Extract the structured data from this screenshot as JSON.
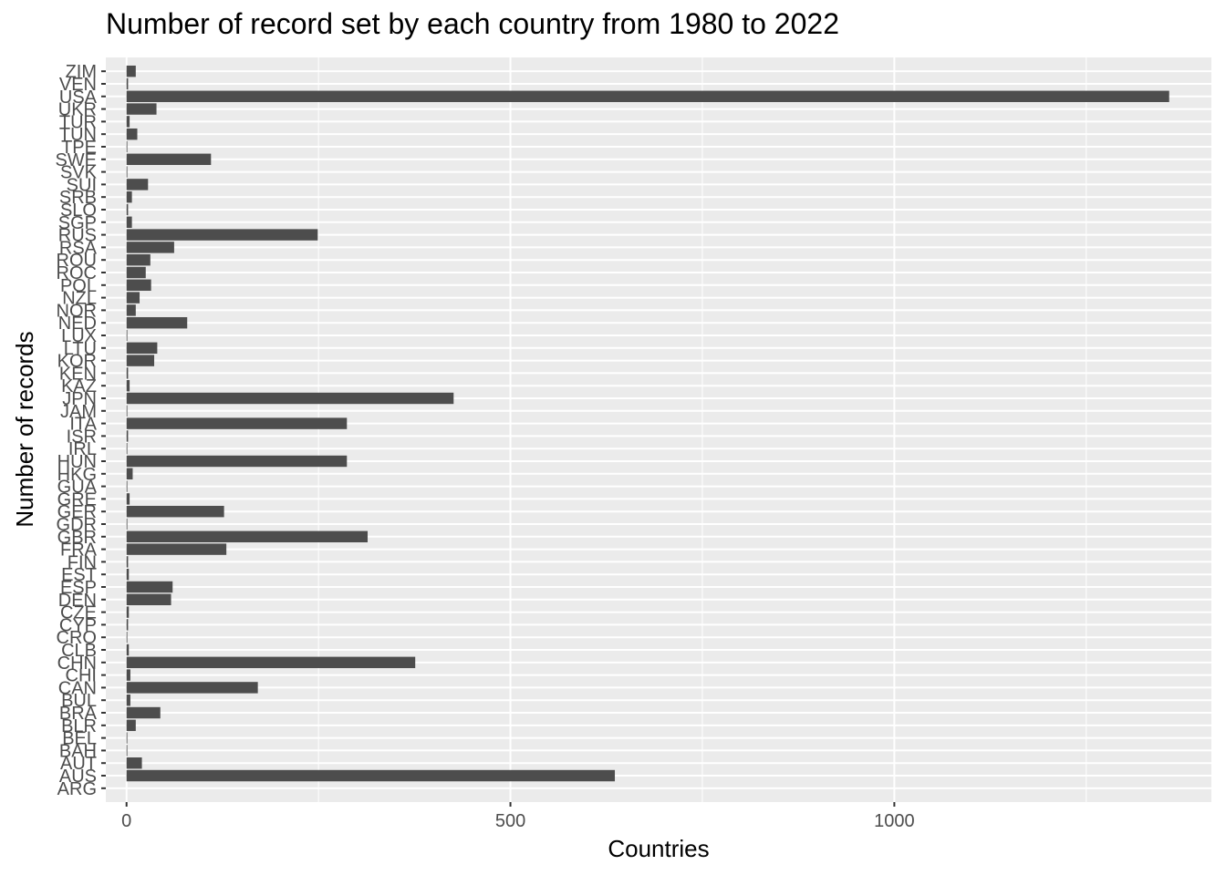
{
  "chart_data": {
    "type": "bar",
    "orientation": "horizontal",
    "title": "Number of record set by each country from 1980 to 2022",
    "xlabel": "Countries",
    "ylabel": "Number of records",
    "xlim": [
      -27,
      1413
    ],
    "x_ticks": [
      0,
      500,
      1000
    ],
    "grid": true,
    "legend": "none",
    "bar_color": "#4d4d4d",
    "panel_color": "#ebebeb",
    "categories": [
      "ARG",
      "AUS",
      "AUT",
      "BAH",
      "BEL",
      "BLR",
      "BRA",
      "BUL",
      "CAN",
      "CHI",
      "CHN",
      "CLB",
      "CRO",
      "CYP",
      "CZE",
      "DEN",
      "ESP",
      "EST",
      "FIN",
      "FRA",
      "GBR",
      "GDR",
      "GER",
      "GRE",
      "GUA",
      "HKG",
      "HUN",
      "IRL",
      "ISR",
      "ITA",
      "JAM",
      "JPN",
      "KAZ",
      "KEN",
      "KOR",
      "LTU",
      "LUX",
      "NED",
      "NOR",
      "NZL",
      "POL",
      "ROC",
      "ROU",
      "RSA",
      "RUS",
      "SGP",
      "SLO",
      "SRB",
      "SUI",
      "SVK",
      "SWE",
      "TPE",
      "TUN",
      "TUR",
      "UKR",
      "USA",
      "VEN",
      "ZIM"
    ],
    "values": [
      0,
      636,
      20,
      1,
      1,
      12,
      44,
      5,
      171,
      5,
      376,
      3,
      1,
      2,
      3,
      58,
      60,
      3,
      2,
      130,
      314,
      1,
      127,
      4,
      1,
      8,
      287,
      1,
      2,
      287,
      1,
      426,
      4,
      2,
      36,
      40,
      1,
      79,
      12,
      17,
      32,
      25,
      31,
      62,
      249,
      7,
      2,
      7,
      28,
      1,
      110,
      1,
      14,
      4,
      39,
      1358,
      2,
      12
    ]
  }
}
